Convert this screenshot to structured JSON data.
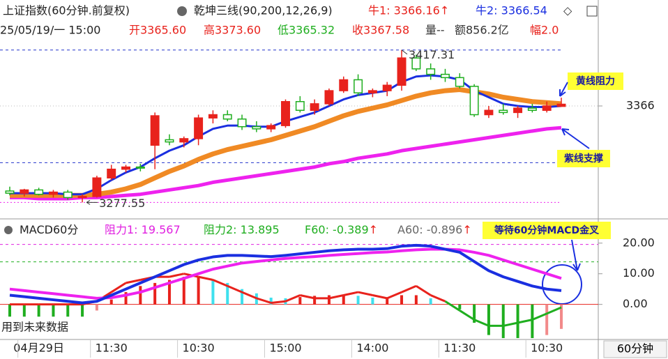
{
  "header": {
    "line1": [
      {
        "text": "上证指数(60分钟.前复权)",
        "color": "#222222"
      },
      {
        "text": "乾坤三线(90,200,12,26,9)",
        "color": "#222222"
      },
      {
        "text": "牛1: 3366.16↑",
        "color": "#e8221c"
      },
      {
        "text": "牛2: 3366.54",
        "color": "#1a2fe0"
      },
      {
        "text": "◇",
        "color": "#333333"
      }
    ],
    "line2": [
      {
        "text": "25/05/19/一 15:00",
        "color": "#222222"
      },
      {
        "text": "开3365.60",
        "color": "#e8221c"
      },
      {
        "text": "高3373.60",
        "color": "#e8221c"
      },
      {
        "text": "低3365.32",
        "color": "#1fae1f"
      },
      {
        "text": "收3367.58",
        "color": "#e8221c"
      },
      {
        "text": "量--",
        "color": "#333333"
      },
      {
        "text": "额856.2亿",
        "color": "#333333"
      },
      {
        "text": "幅2.0",
        "color": "#e8221c"
      }
    ]
  },
  "period": "60分钟",
  "chart_data": [
    {
      "type": "candlestick",
      "open": [
        3288,
        3286,
        3289,
        3285,
        3287,
        3282,
        3283,
        3300,
        3308,
        3310,
        3330,
        3335,
        3333,
        3336,
        3355,
        3358,
        3354,
        3347,
        3345,
        3348,
        3370,
        3362,
        3368,
        3380,
        3390,
        3378,
        3380,
        3385,
        3410,
        3400,
        3395,
        3392,
        3384,
        3358,
        3362,
        3360,
        3364,
        3362,
        3365.6
      ],
      "high": [
        3292,
        3290,
        3291,
        3289,
        3289,
        3285,
        3302,
        3312,
        3312,
        3313,
        3360,
        3340,
        3338,
        3358,
        3362,
        3362,
        3358,
        3352,
        3350,
        3372,
        3375,
        3372,
        3382,
        3393,
        3395,
        3382,
        3388,
        3417.31,
        3413,
        3405,
        3400,
        3396,
        3386,
        3366,
        3368,
        3366,
        3368,
        3370,
        3373.6
      ],
      "low": [
        3284,
        3283,
        3284,
        3282,
        3280,
        3277.55,
        3282,
        3298,
        3305,
        3306,
        3308,
        3330,
        3328,
        3330,
        3350,
        3352,
        3344,
        3342,
        3342,
        3346,
        3360,
        3358,
        3366,
        3378,
        3375,
        3374,
        3375,
        3380,
        3398,
        3390,
        3388,
        3382,
        3356,
        3355,
        3358,
        3355,
        3360,
        3360,
        3365.32
      ],
      "close": [
        3286,
        3289,
        3285,
        3287,
        3282,
        3283,
        3300,
        3308,
        3310,
        3309,
        3357,
        3333,
        3336,
        3355,
        3358,
        3354,
        3347,
        3345,
        3348,
        3370,
        3362,
        3368,
        3380,
        3390,
        3378,
        3380,
        3385,
        3410,
        3400,
        3395,
        3392,
        3384,
        3358,
        3362,
        3360,
        3364,
        3362,
        3366,
        3367.58
      ],
      "up_color": "#e8221c",
      "down_color": "#1fae1f",
      "lines": [
        {
          "color": "#ee22ee",
          "width": 5,
          "values": [
            3282,
            3282,
            3281,
            3281,
            3281,
            3282,
            3282,
            3283,
            3284,
            3285,
            3287,
            3289,
            3291,
            3293,
            3296,
            3298,
            3300,
            3302,
            3304,
            3306,
            3308,
            3310,
            3313,
            3315,
            3318,
            3320,
            3322,
            3325,
            3327,
            3329,
            3331,
            3333,
            3335,
            3337,
            3339,
            3341,
            3343,
            3345,
            3346
          ]
        },
        {
          "color": "#f08a24",
          "width": 7,
          "values": [
            3284,
            3284,
            3284,
            3284,
            3284,
            3284,
            3285,
            3287,
            3290,
            3294,
            3300,
            3306,
            3311,
            3317,
            3322,
            3326,
            3329,
            3332,
            3335,
            3339,
            3343,
            3347,
            3352,
            3357,
            3361,
            3364,
            3367,
            3371,
            3375,
            3378,
            3380,
            3381,
            3379,
            3377,
            3374,
            3372,
            3370,
            3369,
            3368
          ]
        },
        {
          "color": "#1a2fe0",
          "width": 3,
          "values": [
            3286,
            3286,
            3286,
            3286,
            3285,
            3285,
            3290,
            3298,
            3305,
            3310,
            3318,
            3325,
            3330,
            3338,
            3345,
            3348,
            3348,
            3347,
            3347,
            3352,
            3356,
            3360,
            3366,
            3372,
            3376,
            3378,
            3380,
            3388,
            3393,
            3394,
            3393,
            3390,
            3380,
            3374,
            3368,
            3366,
            3365,
            3365,
            3366
          ]
        }
      ],
      "ylim": [
        3265,
        3428
      ],
      "yticks": [
        3366
      ],
      "ref_lines": [
        {
          "value": 3417.31,
          "color": "#2233cc"
        },
        {
          "value": 3314,
          "color": "#2233cc"
        },
        {
          "value": 3277.55,
          "color": "#ee22ee"
        }
      ],
      "annotations": [
        "黄线阻力",
        "紫线支撑"
      ]
    },
    {
      "type": "macd",
      "title": "MACD60分",
      "legend": [
        {
          "label": "阻力1: ",
          "value": 19.567,
          "color": "#e020e0",
          "line": true
        },
        {
          "label": "阻力2: ",
          "value": 13.895,
          "color": "#1fae1f",
          "line": true
        },
        {
          "label": "F60: ",
          "value": -0.389,
          "suffix": "↑",
          "color": "#1fae1f"
        },
        {
          "label": "A60: ",
          "value": -0.896,
          "suffix": "↑",
          "color": "#666666"
        }
      ],
      "categories": [
        null,
        null,
        "04月29日",
        null,
        null,
        null,
        null,
        "11:30",
        null,
        null,
        null,
        null,
        null,
        "10:30",
        null,
        null,
        null,
        null,
        null,
        "15:00",
        null,
        null,
        null,
        null,
        null,
        "14:00",
        null,
        null,
        null,
        null,
        null,
        "11:30",
        null,
        null,
        null,
        null,
        null,
        "10:30",
        null
      ],
      "histogram": [
        -4,
        -4,
        -4,
        -4,
        -4,
        -4,
        -2,
        1.6,
        4,
        6,
        7,
        8,
        9,
        9,
        8,
        7,
        5,
        3.6,
        2.2,
        2,
        2.4,
        2.8,
        3,
        3,
        2.8,
        2.2,
        2.2,
        3,
        3,
        2,
        0,
        -1.6,
        -6,
        -10,
        -11,
        -11,
        -11,
        -10,
        -8
      ],
      "hist_colors": {
        "pos_rise": "#e8221c",
        "pos_fall": "#3ee0ee",
        "neg_fall": "#1fae1f",
        "neg_rise": "#f28a8a"
      },
      "lines": [
        {
          "color": "#ee22ee",
          "width": 4,
          "values": [
            5,
            4.5,
            4,
            3.5,
            3,
            2.5,
            2,
            2.2,
            3,
            4,
            5.5,
            7,
            8.5,
            10,
            11.5,
            12.5,
            13.5,
            14,
            14.5,
            15,
            15.3,
            15.6,
            16,
            16.3,
            16.6,
            16.9,
            17.1,
            17.5,
            17.8,
            18,
            18,
            17.8,
            17,
            16,
            14.5,
            13,
            11.5,
            10,
            8.5
          ]
        },
        {
          "color": "#1a2fe0",
          "width": 4,
          "values": [
            3,
            2.5,
            2,
            1.5,
            1,
            0.5,
            1,
            3,
            5,
            7,
            9,
            11,
            13,
            14.5,
            15.5,
            16,
            16,
            15.8,
            15.6,
            16,
            16.5,
            17,
            17.5,
            17.8,
            18,
            18,
            18.2,
            19,
            19.3,
            19,
            18,
            17,
            14,
            11,
            9,
            7.5,
            6,
            5,
            4.5
          ]
        }
      ],
      "signal": {
        "pos_color": "#e8221c",
        "neg_color": "#1fae1f",
        "values": [
          0,
          0,
          0,
          0,
          0,
          0,
          1,
          4,
          7,
          8,
          9,
          9,
          10,
          9,
          8,
          6,
          4,
          2,
          0.5,
          1,
          3,
          2,
          2,
          3,
          4,
          3,
          2,
          4,
          6,
          3,
          1,
          -2,
          -5,
          -7,
          -7,
          -6,
          -5,
          -3,
          -1
        ]
      },
      "ylim": [
        -11,
        27
      ],
      "yticks": [
        {
          "value": 20,
          "label": "20.00"
        },
        {
          "value": 10,
          "label": "10.00"
        },
        {
          "value": 0,
          "label": "0.00"
        }
      ],
      "annotation": "等待60分钟MACD金叉",
      "note": "用到未来数据"
    }
  ]
}
